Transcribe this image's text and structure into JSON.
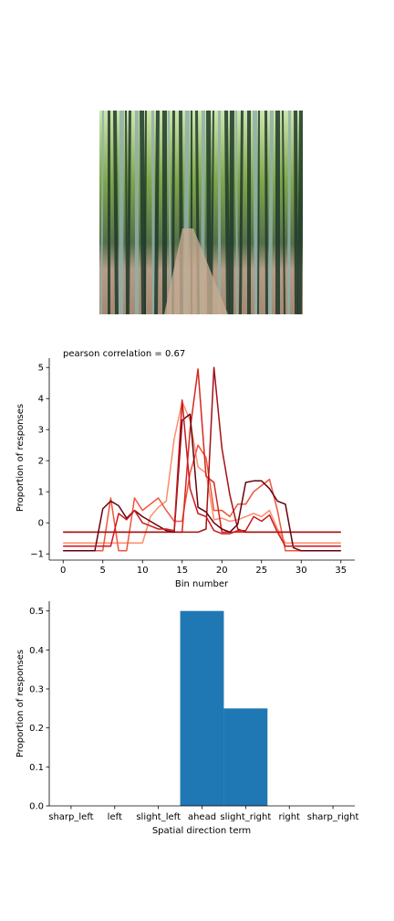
{
  "figure": {
    "photo": {
      "description": "bamboo forest with dirt path",
      "colors": {
        "sky": "#cfe6b0",
        "canopy": "#6f9a3a",
        "stalk_dark": "#1f3a2a",
        "stalk_light": "#8fb0a8",
        "ground": "#b79e86"
      }
    }
  },
  "chart_data": [
    {
      "type": "line",
      "title": "",
      "annotation": "pearson correlation = 0.67",
      "xlabel": "Bin number",
      "ylabel": "Proportion of responses",
      "xlim": [
        -1.75,
        36.75
      ],
      "ylim": [
        -1.2,
        5.3
      ],
      "xticks": [
        0,
        5,
        10,
        15,
        20,
        25,
        30,
        35
      ],
      "yticks": [
        -1,
        0,
        1,
        2,
        3,
        4,
        5
      ],
      "grid": false,
      "legend": "none",
      "x": [
        0,
        1,
        2,
        3,
        4,
        5,
        6,
        7,
        8,
        9,
        10,
        11,
        12,
        13,
        14,
        15,
        16,
        17,
        18,
        19,
        20,
        21,
        22,
        23,
        24,
        25,
        26,
        27,
        28,
        29,
        30,
        31,
        32,
        33,
        34,
        35
      ],
      "series": [
        {
          "color": "#fc8d6a",
          "values": [
            -0.65,
            -0.65,
            -0.65,
            -0.65,
            -0.65,
            -0.65,
            -0.65,
            -0.65,
            -0.65,
            -0.65,
            -0.65,
            0.2,
            0.5,
            0.7,
            2.7,
            3.9,
            3.3,
            1.8,
            1.6,
            0.1,
            0.15,
            0.05,
            0.1,
            0.2,
            0.3,
            0.2,
            0.4,
            -0.2,
            -0.65,
            -0.65,
            -0.65,
            -0.65,
            -0.65,
            -0.65,
            -0.65,
            -0.65
          ]
        },
        {
          "color": "#f0553c",
          "values": [
            -0.9,
            -0.9,
            -0.9,
            -0.9,
            -0.9,
            -0.9,
            0.8,
            -0.9,
            -0.9,
            0.8,
            0.4,
            0.6,
            0.8,
            0.4,
            0.05,
            0.05,
            1.6,
            2.5,
            2.1,
            0.4,
            0.4,
            0.2,
            0.6,
            0.6,
            1.0,
            1.2,
            1.4,
            0.4,
            -0.9,
            -0.9,
            -0.9,
            -0.9,
            -0.9,
            -0.9,
            -0.9,
            -0.9
          ]
        },
        {
          "color": "#d6271f",
          "values": [
            -0.3,
            -0.3,
            -0.3,
            -0.3,
            -0.3,
            -0.3,
            -0.3,
            -0.3,
            -0.3,
            -0.3,
            -0.3,
            -0.3,
            -0.3,
            -0.3,
            -0.3,
            -0.3,
            3.0,
            4.95,
            1.5,
            1.3,
            -0.3,
            -0.3,
            -0.3,
            -0.3,
            -0.3,
            -0.3,
            -0.3,
            -0.3,
            -0.3,
            -0.3,
            -0.3,
            -0.3,
            -0.3,
            -0.3,
            -0.3,
            -0.3
          ]
        },
        {
          "color": "#a50f15",
          "values": [
            -0.3,
            -0.3,
            -0.3,
            -0.3,
            -0.3,
            -0.3,
            -0.3,
            -0.3,
            -0.3,
            -0.3,
            -0.3,
            -0.3,
            -0.3,
            -0.3,
            -0.3,
            -0.3,
            -0.3,
            -0.3,
            -0.2,
            5.0,
            2.4,
            0.9,
            -0.2,
            -0.3,
            -0.3,
            -0.3,
            -0.3,
            -0.3,
            -0.3,
            -0.3,
            -0.3,
            -0.3,
            -0.3,
            -0.3,
            -0.3,
            -0.3
          ]
        },
        {
          "color": "#67000d",
          "values": [
            -0.9,
            -0.9,
            -0.9,
            -0.9,
            -0.9,
            0.45,
            0.7,
            0.55,
            0.15,
            0.4,
            0.2,
            0.05,
            -0.1,
            -0.25,
            -0.3,
            3.3,
            3.5,
            0.5,
            0.35,
            0.0,
            -0.2,
            -0.3,
            -0.05,
            1.3,
            1.35,
            1.35,
            1.1,
            0.7,
            0.6,
            -0.8,
            -0.9,
            -0.9,
            -0.9,
            -0.9,
            -0.9,
            -0.9
          ]
        },
        {
          "color": "#cb181d",
          "values": [
            -0.75,
            -0.75,
            -0.75,
            -0.75,
            -0.75,
            -0.75,
            -0.75,
            0.3,
            0.1,
            0.4,
            0.0,
            -0.1,
            -0.2,
            -0.2,
            -0.25,
            3.95,
            1.1,
            0.3,
            0.2,
            -0.25,
            -0.35,
            -0.35,
            -0.25,
            -0.25,
            0.2,
            0.05,
            0.25,
            -0.3,
            -0.75,
            -0.75,
            -0.75,
            -0.75,
            -0.75,
            -0.75,
            -0.75,
            -0.75
          ]
        }
      ]
    },
    {
      "type": "bar",
      "title": "",
      "xlabel": "Spatial direction term",
      "ylabel": "Proportion of responses",
      "categories": [
        "sharp_left",
        "left",
        "slight_left",
        "ahead",
        "slight_right",
        "right",
        "sharp_right"
      ],
      "values": [
        0.0,
        0.0,
        0.0,
        0.5,
        0.25,
        0.0,
        0.0
      ],
      "ylim": [
        0,
        0.525
      ],
      "yticks": [
        0.0,
        0.1,
        0.2,
        0.3,
        0.4,
        0.5
      ],
      "color": "#1f77b4",
      "grid": false,
      "legend": "none"
    }
  ]
}
